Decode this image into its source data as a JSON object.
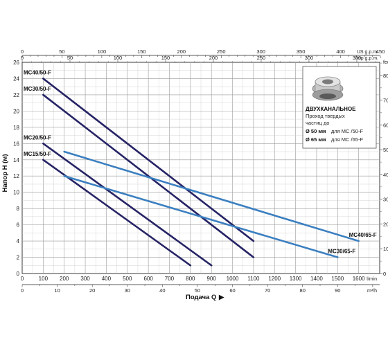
{
  "chart_data": {
    "type": "line",
    "xlabel": "Подача Q",
    "ylabel": "Напор H (м)",
    "x_unit_bottom": "l/min",
    "x_unit_bottom2": "m³/h",
    "x_unit_top": "US g.p.m.",
    "x_unit_top2": "Imp g.p.m.",
    "y_unit_right": "feet",
    "xlim": [
      0,
      1700
    ],
    "ylim": [
      0,
      26
    ],
    "xticks_lmin": [
      "0",
      "100",
      "200",
      "300",
      "400",
      "500",
      "600",
      "700",
      "800",
      "900",
      "1000",
      "1100",
      "1200",
      "1300",
      "1400",
      "1500",
      "1600"
    ],
    "xticks_m3h": [
      "0",
      "10",
      "20",
      "30",
      "40",
      "50",
      "60",
      "70",
      "80",
      "90"
    ],
    "xticks_usgpm": [
      "0",
      "50",
      "100",
      "150",
      "200",
      "250",
      "300",
      "350",
      "400",
      "450"
    ],
    "xticks_impgpm": [
      "0",
      "50",
      "100",
      "150",
      "200",
      "250",
      "300",
      "350"
    ],
    "yticks_m": [
      "0",
      "2",
      "4",
      "6",
      "8",
      "10",
      "12",
      "14",
      "16",
      "18",
      "20",
      "22",
      "24",
      "26"
    ],
    "yticks_feet": [
      "0",
      "10",
      "20",
      "30",
      "40",
      "50",
      "60",
      "70",
      "80"
    ],
    "grid": true,
    "series": [
      {
        "name": "MC40/50-F",
        "color": "#262465",
        "x": [
          100,
          1100
        ],
        "y": [
          24,
          4
        ]
      },
      {
        "name": "MC30/50-F",
        "color": "#262465",
        "x": [
          100,
          1100
        ],
        "y": [
          22,
          2
        ]
      },
      {
        "name": "MC20/50-F",
        "color": "#262465",
        "x": [
          100,
          900
        ],
        "y": [
          16,
          1
        ]
      },
      {
        "name": "MC15/50-F",
        "color": "#262465",
        "x": [
          100,
          800
        ],
        "y": [
          14,
          1
        ]
      },
      {
        "name": "MC40/65-F",
        "color": "#3b7fc0",
        "x": [
          200,
          1600
        ],
        "y": [
          15,
          4
        ]
      },
      {
        "name": "MC30/65-F",
        "color": "#3b7fc0",
        "x": [
          200,
          1500
        ],
        "y": [
          12,
          2
        ]
      }
    ]
  },
  "info_box": {
    "title": "ДВУХКАНАЛЬНОЕ",
    "line1": "Проход твердых",
    "line2": "частиц до",
    "line3_bold": "Ø 50 мм",
    "line3_rest": "для MC /50-F",
    "line4_bold": "Ø 65 мм",
    "line4_rest": "для MC /65-F"
  }
}
